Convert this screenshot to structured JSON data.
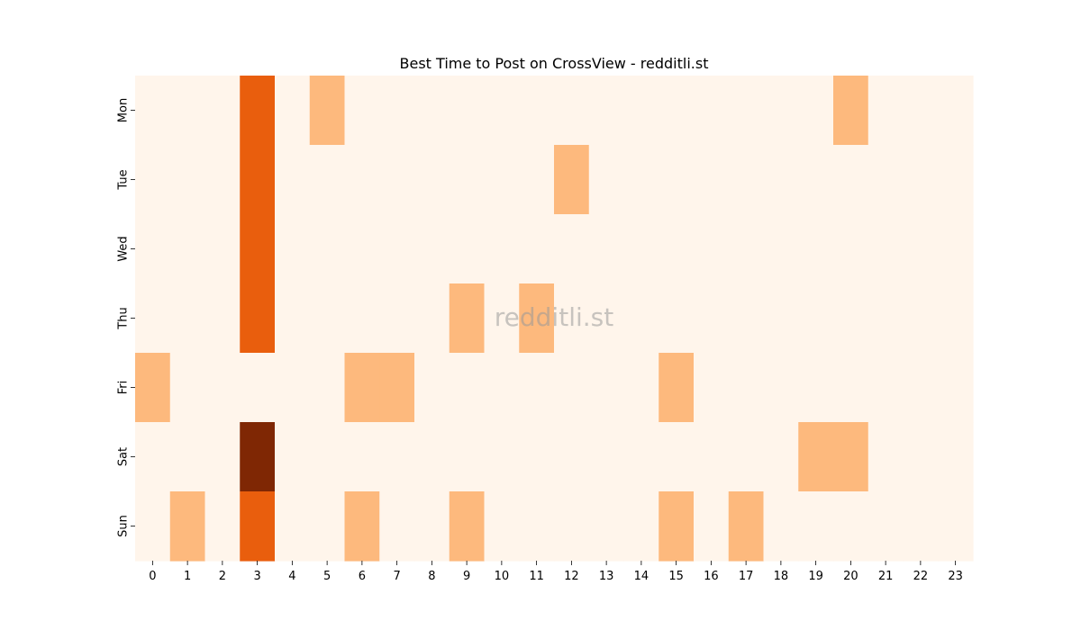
{
  "chart_data": {
    "type": "heatmap",
    "title": "Best Time to Post on CrossView - redditli.st",
    "watermark": "redditli.st",
    "x_categories": [
      "0",
      "1",
      "2",
      "3",
      "4",
      "5",
      "6",
      "7",
      "8",
      "9",
      "10",
      "11",
      "12",
      "13",
      "14",
      "15",
      "16",
      "17",
      "18",
      "19",
      "20",
      "21",
      "22",
      "23"
    ],
    "y_categories": [
      "Mon",
      "Tue",
      "Wed",
      "Thu",
      "Fri",
      "Sat",
      "Sun"
    ],
    "values": [
      [
        0,
        0,
        0,
        2,
        0,
        1,
        0,
        0,
        0,
        0,
        0,
        0,
        0,
        0,
        0,
        0,
        0,
        0,
        0,
        0,
        1,
        0,
        0,
        0
      ],
      [
        0,
        0,
        0,
        2,
        0,
        0,
        0,
        0,
        0,
        0,
        0,
        0,
        1,
        0,
        0,
        0,
        0,
        0,
        0,
        0,
        0,
        0,
        0,
        0
      ],
      [
        0,
        0,
        0,
        2,
        0,
        0,
        0,
        0,
        0,
        0,
        0,
        0,
        0,
        0,
        0,
        0,
        0,
        0,
        0,
        0,
        0,
        0,
        0,
        0
      ],
      [
        0,
        0,
        0,
        2,
        0,
        0,
        0,
        0,
        0,
        1,
        0,
        1,
        0,
        0,
        0,
        0,
        0,
        0,
        0,
        0,
        0,
        0,
        0,
        0
      ],
      [
        1,
        0,
        0,
        0,
        0,
        0,
        1,
        1,
        0,
        0,
        0,
        0,
        0,
        0,
        0,
        1,
        0,
        0,
        0,
        0,
        0,
        0,
        0,
        0
      ],
      [
        0,
        0,
        0,
        3,
        0,
        0,
        0,
        0,
        0,
        0,
        0,
        0,
        0,
        0,
        0,
        0,
        0,
        0,
        0,
        1,
        1,
        0,
        0,
        0
      ],
      [
        0,
        1,
        0,
        2,
        0,
        0,
        1,
        0,
        0,
        1,
        0,
        0,
        0,
        0,
        0,
        1,
        0,
        1,
        0,
        0,
        0,
        0,
        0,
        0
      ]
    ],
    "colormap": "Oranges",
    "level_colors": [
      "#fff5eb",
      "#fdb97d",
      "#e95e0d",
      "#7f2704"
    ],
    "grid": false,
    "legend": "none"
  }
}
